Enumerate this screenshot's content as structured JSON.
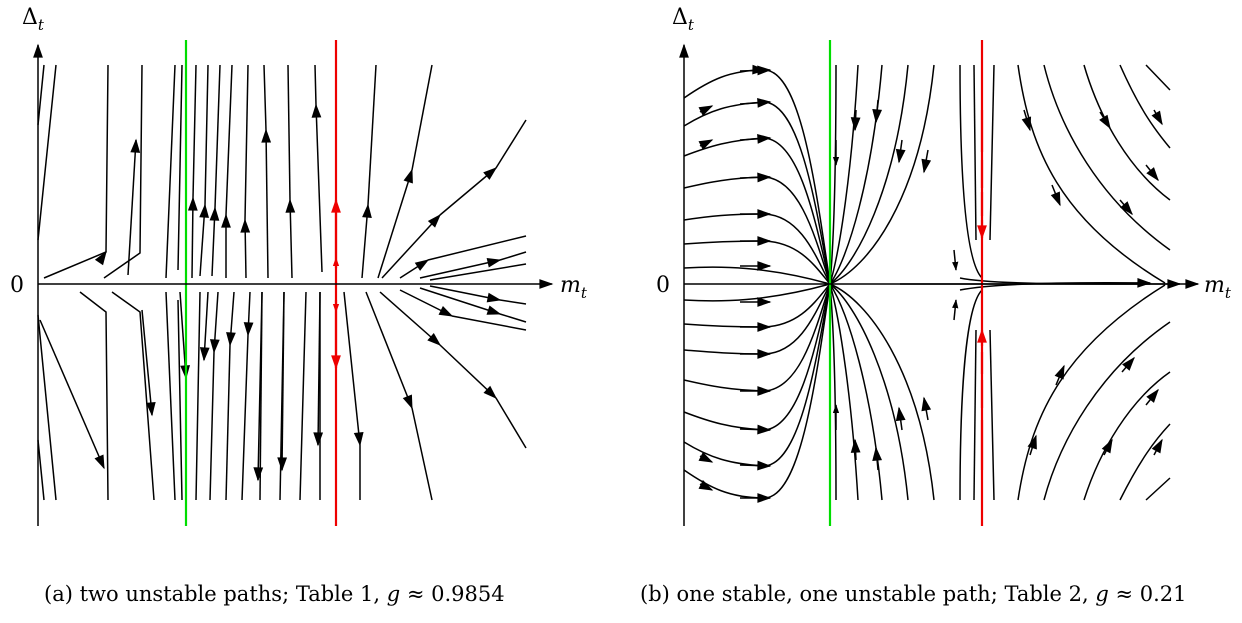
{
  "panels": [
    {
      "id": "a",
      "y_axis_label": "Δ",
      "y_axis_sub": "t",
      "x_axis_label": "m",
      "x_axis_sub": "t",
      "zero_label": "0",
      "caption_text": "(a) two unstable paths; Table 1, ",
      "caption_var": "g",
      "caption_rel": " ≈ 0.9854",
      "colors": {
        "stable_line": "#00dd00",
        "unstable_line": "#ee0000",
        "streams": "#000000"
      }
    },
    {
      "id": "b",
      "y_axis_label": "Δ",
      "y_axis_sub": "t",
      "x_axis_label": "m",
      "x_axis_sub": "t",
      "zero_label": "0",
      "caption_text": "(b) one stable, one unstable path; Table 2, ",
      "caption_var": "g",
      "caption_rel": " ≈ 0.21",
      "colors": {
        "stable_line": "#00dd00",
        "unstable_line": "#ee0000",
        "streams": "#000000"
      }
    }
  ]
}
